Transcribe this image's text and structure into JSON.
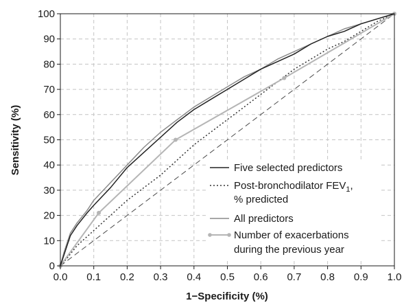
{
  "chart_data": {
    "type": "line",
    "xlabel": "1−Specificity (%)",
    "ylabel": "Sensitivity (%)",
    "xlim": [
      0,
      1
    ],
    "ylim": [
      0,
      100
    ],
    "x_ticks": [
      "0.0",
      "0.1",
      "0.2",
      "0.3",
      "0.4",
      "0.5",
      "0.6",
      "0.7",
      "0.8",
      "0.9",
      "1.0"
    ],
    "y_ticks": [
      "0",
      "10",
      "20",
      "30",
      "40",
      "50",
      "60",
      "70",
      "80",
      "90",
      "100"
    ],
    "grid": true,
    "legend_position": "bottom-right",
    "series": [
      {
        "name": "Five selected predictors",
        "color": "#222222",
        "dash": "solid",
        "markers": false,
        "x": [
          0,
          0.01,
          0.02,
          0.03,
          0.05,
          0.08,
          0.1,
          0.15,
          0.2,
          0.25,
          0.3,
          0.35,
          0.4,
          0.45,
          0.5,
          0.55,
          0.6,
          0.65,
          0.7,
          0.75,
          0.8,
          0.85,
          0.9,
          0.95,
          1.0
        ],
        "y": [
          0,
          4,
          8,
          12,
          16,
          21,
          24,
          31,
          39,
          45,
          51,
          57,
          62,
          66,
          70,
          74,
          78,
          81,
          84,
          88,
          91,
          93,
          96,
          98,
          100
        ]
      },
      {
        "name": "Post-bronchodilator FEV",
        "name_sub": "1",
        "name_suffix": ",",
        "name_line2": "% predicted",
        "color": "#333333",
        "dash": "dotted",
        "markers": false,
        "x": [
          0,
          0.02,
          0.05,
          0.1,
          0.15,
          0.2,
          0.25,
          0.3,
          0.35,
          0.4,
          0.45,
          0.5,
          0.55,
          0.6,
          0.65,
          0.7,
          0.75,
          0.8,
          0.85,
          0.9,
          0.95,
          1.0
        ],
        "y": [
          0,
          3,
          8,
          14,
          20,
          26,
          31,
          36,
          42,
          48,
          53,
          58,
          63,
          68,
          73,
          78,
          82,
          86,
          89,
          93,
          97,
          100
        ]
      },
      {
        "name": "All predictors",
        "color": "#8a8a8a",
        "dash": "solid",
        "markers": false,
        "x": [
          0,
          0.01,
          0.02,
          0.03,
          0.05,
          0.08,
          0.1,
          0.15,
          0.2,
          0.25,
          0.3,
          0.35,
          0.4,
          0.45,
          0.5,
          0.55,
          0.6,
          0.65,
          0.7,
          0.75,
          0.8,
          0.85,
          0.9,
          0.95,
          1.0
        ],
        "y": [
          0,
          5,
          9,
          13,
          17,
          22,
          26,
          33,
          40,
          47,
          53,
          58,
          63,
          67,
          71,
          75,
          78,
          82,
          85,
          88,
          91,
          94,
          96,
          98,
          100
        ]
      },
      {
        "name": "Number of exacerbations",
        "name_line2": "during the previous year",
        "color": "#b5b5b5",
        "dash": "solid",
        "markers": true,
        "x": [
          0,
          0.115,
          0.345,
          0.67,
          1.0
        ],
        "y": [
          0,
          21,
          50,
          74.5,
          100
        ]
      }
    ]
  }
}
